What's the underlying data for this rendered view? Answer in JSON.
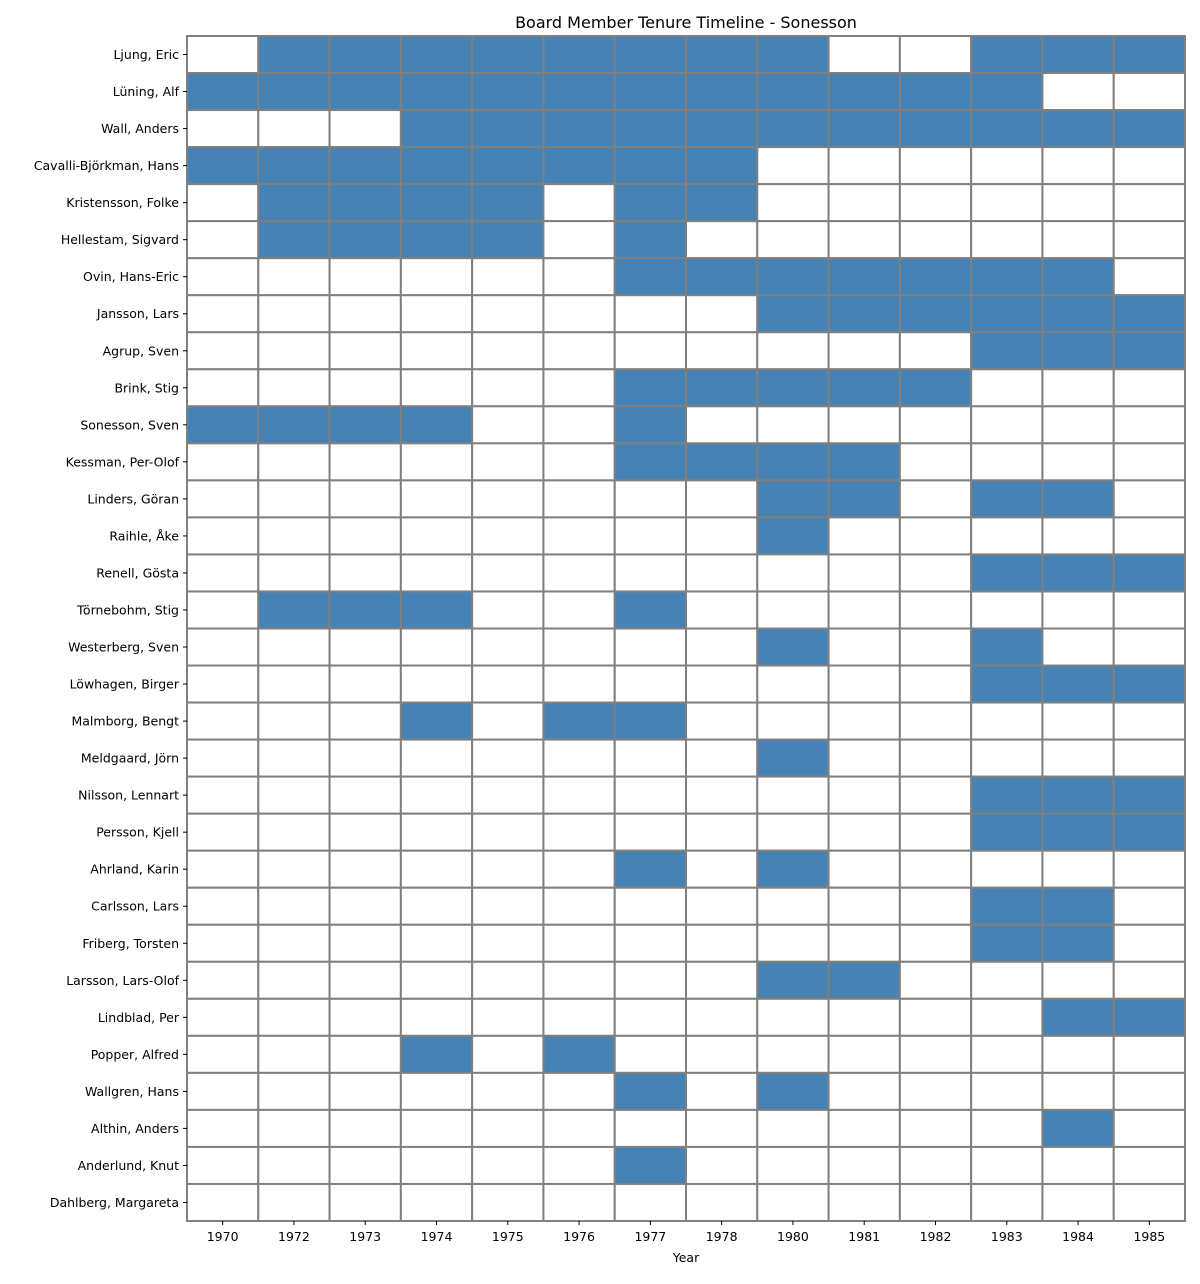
{
  "chart_data": {
    "type": "heatmap",
    "title": "Board Member Tenure Timeline - Sonesson",
    "xlabel": "Year",
    "ylabel": "",
    "grid": true,
    "colors": {
      "on": "#4682b4",
      "off": "#ffffff",
      "grid": "#808080"
    },
    "years": [
      "1970",
      "1972",
      "1973",
      "1974",
      "1975",
      "1976",
      "1977",
      "1978",
      "1980",
      "1981",
      "1982",
      "1983",
      "1984",
      "1985"
    ],
    "members": [
      "Ljung, Eric",
      "Lüning, Alf",
      "Wall, Anders",
      "Cavalli-Björkman, Hans",
      "Kristensson, Folke",
      "Hellestam, Sigvard",
      "Ovin, Hans-Eric",
      "Jansson, Lars",
      "Agrup, Sven",
      "Brink, Stig",
      "Sonesson, Sven",
      "Kessman, Per-Olof",
      "Linders, Göran",
      "Raihle, Åke",
      "Renell, Gösta",
      "Törnebohm, Stig",
      "Westerberg, Sven",
      "Löwhagen, Birger",
      "Malmborg, Bengt",
      "Meldgaard, Jörn",
      "Nilsson, Lennart",
      "Persson, Kjell",
      "Ahrland, Karin",
      "Carlsson, Lars",
      "Friberg, Torsten",
      "Larsson, Lars-Olof",
      "Lindblad, Per",
      "Popper, Alfred",
      "Wallgren, Hans",
      "Althin, Anders",
      "Anderlund, Knut",
      "Dahlberg, Margareta"
    ],
    "matrix": [
      [
        0,
        1,
        1,
        1,
        1,
        1,
        1,
        1,
        1,
        0,
        0,
        1,
        1,
        1
      ],
      [
        1,
        1,
        1,
        1,
        1,
        1,
        1,
        1,
        1,
        1,
        1,
        1,
        0,
        0
      ],
      [
        0,
        0,
        0,
        1,
        1,
        1,
        1,
        1,
        1,
        1,
        1,
        1,
        1,
        1
      ],
      [
        1,
        1,
        1,
        1,
        1,
        1,
        1,
        1,
        0,
        0,
        0,
        0,
        0,
        0
      ],
      [
        0,
        1,
        1,
        1,
        1,
        0,
        1,
        1,
        0,
        0,
        0,
        0,
        0,
        0
      ],
      [
        0,
        1,
        1,
        1,
        1,
        0,
        1,
        0,
        0,
        0,
        0,
        0,
        0,
        0
      ],
      [
        0,
        0,
        0,
        0,
        0,
        0,
        1,
        1,
        1,
        1,
        1,
        1,
        1,
        0
      ],
      [
        0,
        0,
        0,
        0,
        0,
        0,
        0,
        0,
        1,
        1,
        1,
        1,
        1,
        1
      ],
      [
        0,
        0,
        0,
        0,
        0,
        0,
        0,
        0,
        0,
        0,
        0,
        1,
        1,
        1
      ],
      [
        0,
        0,
        0,
        0,
        0,
        0,
        1,
        1,
        1,
        1,
        1,
        0,
        0,
        0
      ],
      [
        1,
        1,
        1,
        1,
        0,
        0,
        1,
        0,
        0,
        0,
        0,
        0,
        0,
        0
      ],
      [
        0,
        0,
        0,
        0,
        0,
        0,
        1,
        1,
        1,
        1,
        0,
        0,
        0,
        0
      ],
      [
        0,
        0,
        0,
        0,
        0,
        0,
        0,
        0,
        1,
        1,
        0,
        1,
        1,
        0
      ],
      [
        0,
        0,
        0,
        0,
        0,
        0,
        0,
        0,
        1,
        0,
        0,
        0,
        0,
        0
      ],
      [
        0,
        0,
        0,
        0,
        0,
        0,
        0,
        0,
        0,
        0,
        0,
        1,
        1,
        1
      ],
      [
        0,
        1,
        1,
        1,
        0,
        0,
        1,
        0,
        0,
        0,
        0,
        0,
        0,
        0
      ],
      [
        0,
        0,
        0,
        0,
        0,
        0,
        0,
        0,
        1,
        0,
        0,
        1,
        0,
        0
      ],
      [
        0,
        0,
        0,
        0,
        0,
        0,
        0,
        0,
        0,
        0,
        0,
        1,
        1,
        1
      ],
      [
        0,
        0,
        0,
        1,
        0,
        1,
        1,
        0,
        0,
        0,
        0,
        0,
        0,
        0
      ],
      [
        0,
        0,
        0,
        0,
        0,
        0,
        0,
        0,
        1,
        0,
        0,
        0,
        0,
        0
      ],
      [
        0,
        0,
        0,
        0,
        0,
        0,
        0,
        0,
        0,
        0,
        0,
        1,
        1,
        1
      ],
      [
        0,
        0,
        0,
        0,
        0,
        0,
        0,
        0,
        0,
        0,
        0,
        1,
        1,
        1
      ],
      [
        0,
        0,
        0,
        0,
        0,
        0,
        1,
        0,
        1,
        0,
        0,
        0,
        0,
        0
      ],
      [
        0,
        0,
        0,
        0,
        0,
        0,
        0,
        0,
        0,
        0,
        0,
        1,
        1,
        0
      ],
      [
        0,
        0,
        0,
        0,
        0,
        0,
        0,
        0,
        0,
        0,
        0,
        1,
        1,
        0
      ],
      [
        0,
        0,
        0,
        0,
        0,
        0,
        0,
        0,
        1,
        1,
        0,
        0,
        0,
        0
      ],
      [
        0,
        0,
        0,
        0,
        0,
        0,
        0,
        0,
        0,
        0,
        0,
        0,
        1,
        1
      ],
      [
        0,
        0,
        0,
        1,
        0,
        1,
        0,
        0,
        0,
        0,
        0,
        0,
        0,
        0
      ],
      [
        0,
        0,
        0,
        0,
        0,
        0,
        1,
        0,
        1,
        0,
        0,
        0,
        0,
        0
      ],
      [
        0,
        0,
        0,
        0,
        0,
        0,
        0,
        0,
        0,
        0,
        0,
        0,
        1,
        0
      ],
      [
        0,
        0,
        0,
        0,
        0,
        0,
        1,
        0,
        0,
        0,
        0,
        0,
        0,
        0
      ],
      [
        0,
        0,
        0,
        0,
        0,
        0,
        0,
        0,
        0,
        0,
        0,
        0,
        0,
        0
      ]
    ]
  }
}
